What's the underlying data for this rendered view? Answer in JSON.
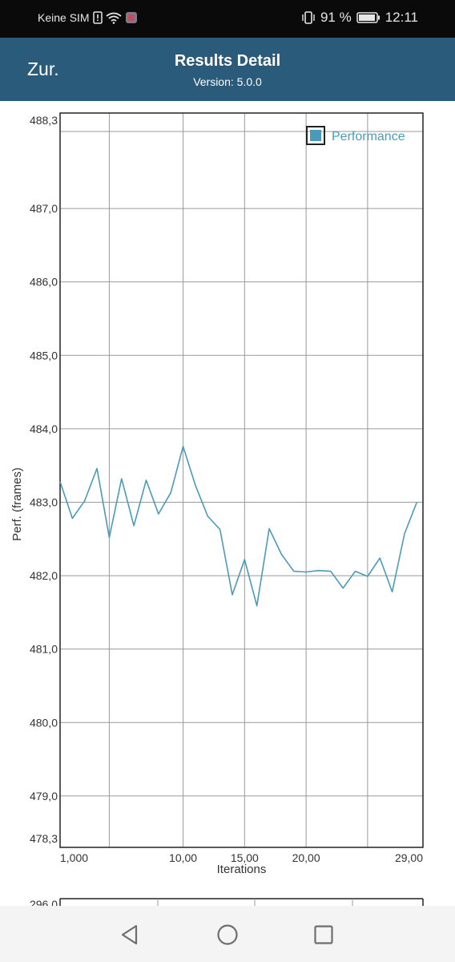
{
  "status_bar": {
    "carrier": "Keine SIM",
    "battery": "91 %",
    "time": "12:11",
    "icons": [
      "sim-alert-icon",
      "wifi-icon",
      "app-notification-icon",
      "vibrate-icon",
      "battery-icon"
    ]
  },
  "header": {
    "back_label": "Zur.",
    "title": "Results Detail",
    "version": "Version: 5.0.0",
    "background": "#2b5b7a"
  },
  "chart_data": {
    "type": "line",
    "xlabel": "Iterations",
    "ylabel": "Perf. (frames)",
    "xlim": [
      0,
      29.5
    ],
    "ylim": [
      478.3,
      488.3
    ],
    "x_tick_labels": [
      "1,000",
      "10,00",
      "15,00",
      "20,00",
      "29,00"
    ],
    "y_tick_labels": [
      "488,3",
      "487,0",
      "486,0",
      "485,0",
      "484,0",
      "483,0",
      "482,0",
      "481,0",
      "480,0",
      "479,0",
      "478,3"
    ],
    "grid": true,
    "legend_position": "top-right",
    "series": [
      {
        "name": "Performance",
        "color": "#4a9bb8",
        "x": [
          0,
          1,
          2,
          3,
          4,
          5,
          6,
          7,
          8,
          9,
          10,
          11,
          12,
          13,
          14,
          15,
          16,
          17,
          18,
          19,
          20,
          21,
          22,
          23,
          24,
          25,
          26,
          27,
          28,
          29
        ],
        "values": [
          483.28,
          482.78,
          483.02,
          483.46,
          482.52,
          483.32,
          482.68,
          483.3,
          482.84,
          483.13,
          483.76,
          483.23,
          482.81,
          482.63,
          481.74,
          482.22,
          481.59,
          482.64,
          482.29,
          482.06,
          482.05,
          482.07,
          482.06,
          481.83,
          482.06,
          481.99,
          482.24,
          481.78,
          482.57,
          483.0
        ]
      }
    ]
  },
  "second_chart": {
    "y_top_label": "296,0"
  },
  "nav_bar": {
    "icons": [
      "back-triangle-icon",
      "home-circle-icon",
      "recents-square-icon"
    ]
  }
}
